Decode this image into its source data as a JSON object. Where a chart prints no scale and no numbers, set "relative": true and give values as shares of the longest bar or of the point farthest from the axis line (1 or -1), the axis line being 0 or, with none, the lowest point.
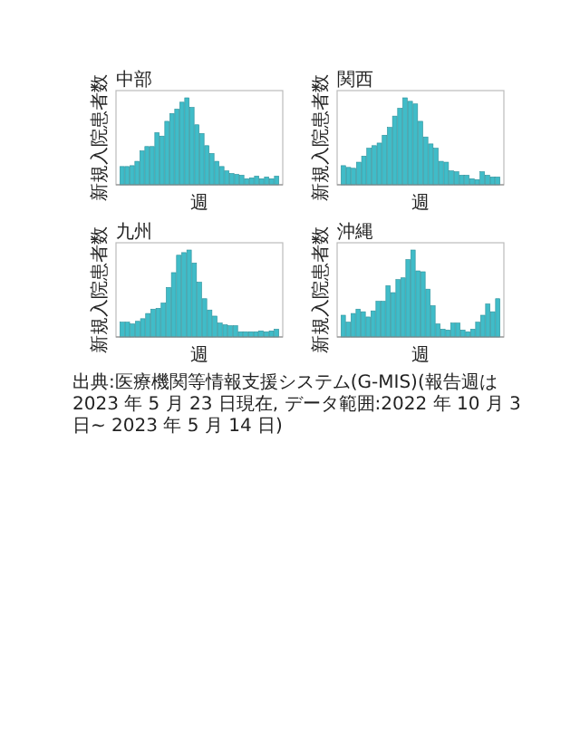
{
  "chart_data": [
    {
      "type": "bar",
      "title": "中部",
      "xlabel": "週",
      "ylabel": "新規入院患者数",
      "relative": true,
      "color": "#40bcc8",
      "categories": [
        null,
        null,
        null,
        null,
        null,
        null,
        null,
        null,
        null,
        null,
        null,
        null,
        null,
        null,
        null,
        null,
        null,
        null,
        null,
        null,
        null,
        null,
        null,
        null,
        null,
        null,
        null,
        null,
        null,
        null,
        null,
        null
      ],
      "values": [
        0.21,
        0.21,
        0.22,
        0.27,
        0.39,
        0.44,
        0.44,
        0.6,
        0.56,
        0.73,
        0.82,
        0.87,
        0.95,
        1,
        0.89,
        0.69,
        0.59,
        0.45,
        0.36,
        0.27,
        0.21,
        0.16,
        0.13,
        0.12,
        0.11,
        0.07,
        0.08,
        0.1,
        0.07,
        0.09,
        0.07,
        0.1
      ]
    },
    {
      "type": "bar",
      "title": "関西",
      "xlabel": "週",
      "ylabel": "新規入院患者数",
      "relative": true,
      "color": "#40bcc8",
      "categories": [
        null,
        null,
        null,
        null,
        null,
        null,
        null,
        null,
        null,
        null,
        null,
        null,
        null,
        null,
        null,
        null,
        null,
        null,
        null,
        null,
        null,
        null,
        null,
        null,
        null,
        null,
        null,
        null,
        null,
        null,
        null
      ],
      "values": [
        0.22,
        0.2,
        0.19,
        0.26,
        0.33,
        0.42,
        0.45,
        0.48,
        0.57,
        0.66,
        0.79,
        0.88,
        1,
        0.96,
        0.93,
        0.73,
        0.55,
        0.47,
        0.42,
        0.27,
        0.26,
        0.16,
        0.15,
        0.11,
        0.11,
        0.07,
        0.06,
        0.15,
        0.11,
        0.09,
        0.09
      ]
    },
    {
      "type": "bar",
      "title": "九州",
      "xlabel": "週",
      "ylabel": "新規入院患者数",
      "relative": true,
      "color": "#40bcc8",
      "categories": [
        null,
        null,
        null,
        null,
        null,
        null,
        null,
        null,
        null,
        null,
        null,
        null,
        null,
        null,
        null,
        null,
        null,
        null,
        null,
        null,
        null,
        null,
        null,
        null,
        null,
        null,
        null,
        null,
        null,
        null,
        null
      ],
      "values": [
        0.17,
        0.17,
        0.15,
        0.18,
        0.21,
        0.27,
        0.32,
        0.33,
        0.39,
        0.57,
        0.74,
        0.94,
        0.97,
        1,
        0.85,
        0.63,
        0.44,
        0.31,
        0.24,
        0.16,
        0.14,
        0.13,
        0.13,
        0.06,
        0.06,
        0.06,
        0.06,
        0.07,
        0.06,
        0.07,
        0.09
      ]
    },
    {
      "type": "bar",
      "title": "沖縄",
      "xlabel": "週",
      "ylabel": "新規入院患者数",
      "relative": true,
      "color": "#40bcc8",
      "categories": [
        null,
        null,
        null,
        null,
        null,
        null,
        null,
        null,
        null,
        null,
        null,
        null,
        null,
        null,
        null,
        null,
        null,
        null,
        null,
        null,
        null,
        null,
        null,
        null,
        null,
        null,
        null,
        null,
        null,
        null,
        null,
        null
      ],
      "values": [
        0.25,
        0.17,
        0.27,
        0.32,
        0.29,
        0.23,
        0.3,
        0.41,
        0.41,
        0.59,
        0.51,
        0.66,
        0.68,
        0.89,
        1,
        0.76,
        0.75,
        0.55,
        0.36,
        0.15,
        0.09,
        0.08,
        0.16,
        0.16,
        0.08,
        0.06,
        0.09,
        0.17,
        0.25,
        0.38,
        0.29,
        0.44
      ]
    },
    {
      "type": "other",
      "annotations": [
        "出典:医療機関等情報支援システム(G-MIS)(報告週は 2023 年 5 月 23 日現在, データ範囲:2022 年 10 月 3 日~ 2023 年 5 月 14 日)"
      ]
    }
  ]
}
